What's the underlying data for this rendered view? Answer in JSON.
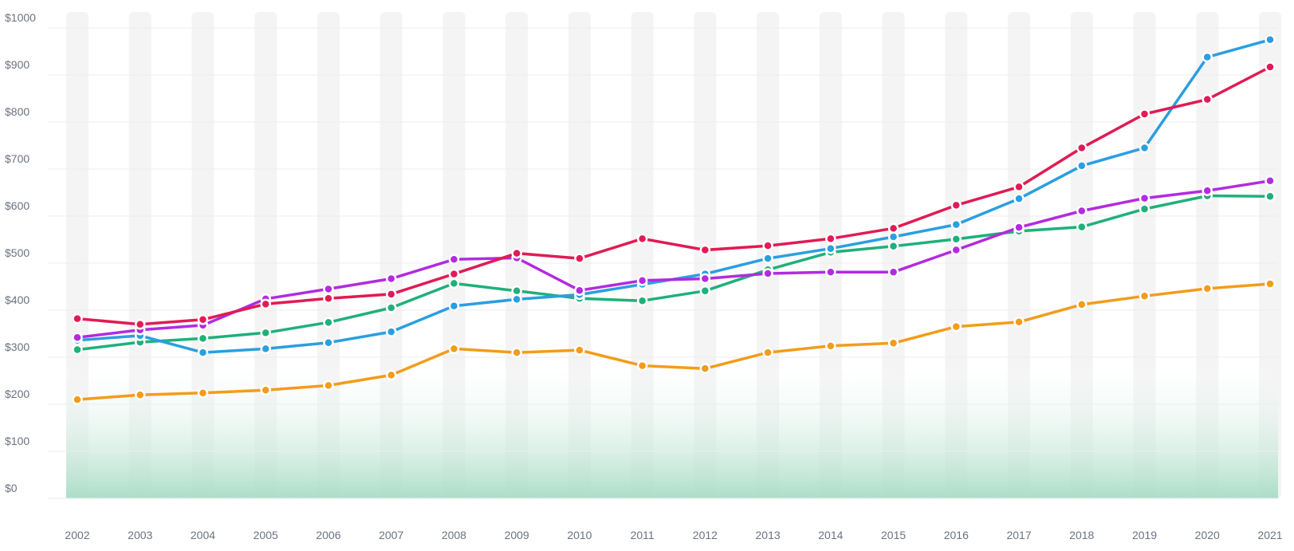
{
  "chart_data": {
    "type": "line",
    "categories": [
      "2002",
      "2003",
      "2004",
      "2005",
      "2006",
      "2007",
      "2008",
      "2009",
      "2010",
      "2011",
      "2012",
      "2013",
      "2014",
      "2015",
      "2016",
      "2017",
      "2018",
      "2019",
      "2020",
      "2021"
    ],
    "y_ticks": [
      "$0",
      "$100",
      "$200",
      "$300",
      "$400",
      "$500",
      "$600",
      "$700",
      "$800",
      "$900",
      "$1000"
    ],
    "ylim": [
      0,
      1000
    ],
    "grid": true,
    "legend": "none",
    "background_fill": {
      "from": 0,
      "to": 300,
      "color": "#a8dcc6"
    },
    "series": [
      {
        "color": "#f39c1a",
        "values": [
          210,
          220,
          224,
          230,
          240,
          262,
          318,
          310,
          315,
          282,
          276,
          310,
          324,
          330,
          365,
          375,
          412,
          430,
          446,
          456
        ]
      },
      {
        "color": "#20b07a",
        "values": [
          316,
          332,
          340,
          352,
          374,
          405,
          457,
          441,
          425,
          420,
          441,
          486,
          523,
          536,
          551,
          568,
          577,
          615,
          643,
          642
        ]
      },
      {
        "color": "#2a9fe0",
        "values": [
          336,
          346,
          310,
          318,
          331,
          354,
          409,
          423,
          433,
          455,
          477,
          510,
          531,
          556,
          582,
          637,
          707,
          745,
          938,
          975
        ]
      },
      {
        "color": "#b22be0",
        "values": [
          342,
          358,
          368,
          424,
          445,
          467,
          508,
          511,
          442,
          463,
          467,
          478,
          481,
          481,
          528,
          576,
          611,
          638,
          654,
          675
        ]
      },
      {
        "color": "#e01b55",
        "values": [
          382,
          370,
          380,
          413,
          425,
          434,
          477,
          521,
          510,
          552,
          528,
          537,
          552,
          574,
          623,
          662,
          745,
          817,
          848,
          917
        ]
      }
    ]
  }
}
